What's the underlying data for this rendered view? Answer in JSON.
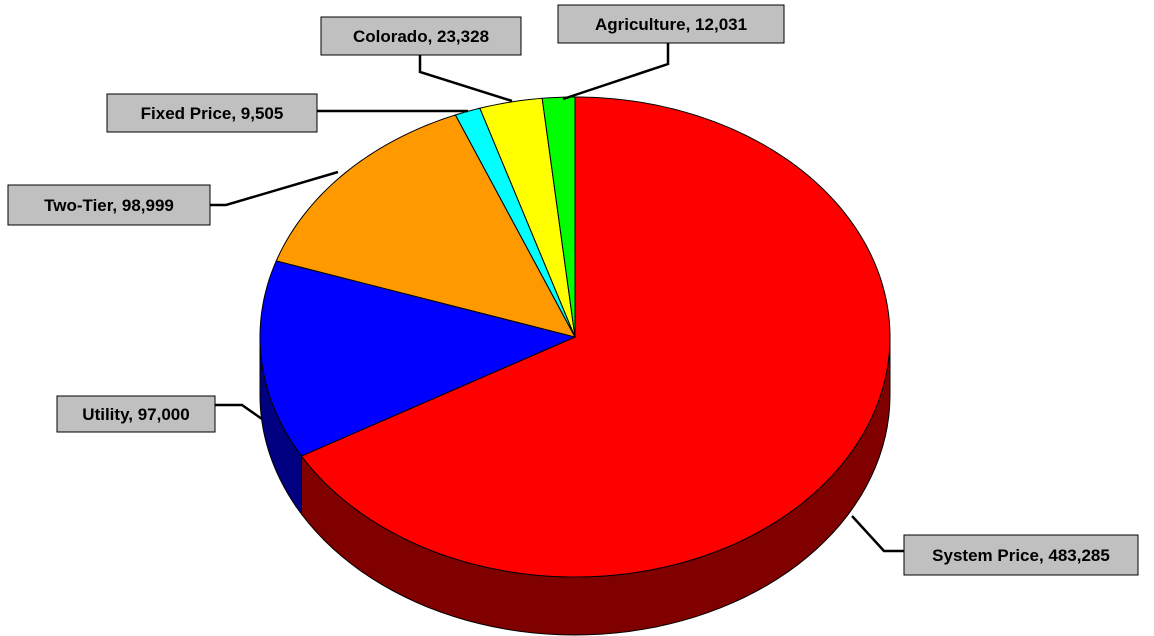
{
  "chart_data": {
    "type": "pie",
    "style": "3d",
    "legend": "none",
    "slices": [
      {
        "label": "System Price",
        "value": 483285,
        "display": "System Price, 483,285",
        "color": "#ff0000",
        "side_color": "#800000"
      },
      {
        "label": "Utility",
        "value": 97000,
        "display": "Utility, 97,000",
        "color": "#0000ff",
        "side_color": "#000080"
      },
      {
        "label": "Two-Tier",
        "value": 98999,
        "display": "Two-Tier, 98,999",
        "color": "#ff9900",
        "side_color": "#804c00"
      },
      {
        "label": "Fixed Price",
        "value": 9505,
        "display": "Fixed Price, 9,505",
        "color": "#00ffff",
        "side_color": "#008080"
      },
      {
        "label": "Colorado",
        "value": 23328,
        "display": "Colorado, 23,328",
        "color": "#ffff00",
        "side_color": "#808000"
      },
      {
        "label": "Agriculture",
        "value": 12031,
        "display": "Agriculture, 12,031",
        "color": "#00ff00",
        "side_color": "#008000"
      }
    ]
  }
}
